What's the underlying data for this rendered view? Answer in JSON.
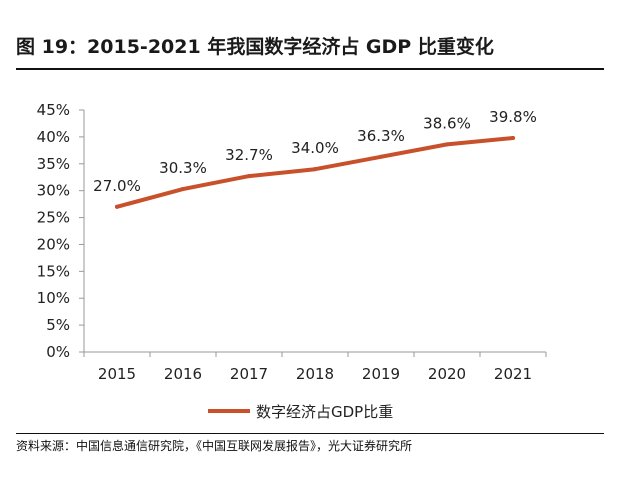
{
  "figure": {
    "title": "图 19：2015-2021 年我国数字经济占 GDP 比重变化",
    "source": "资料来源：中国信息通信研究院，《中国互联网发展报告》，光大证券研究所"
  },
  "chart_data": {
    "type": "line",
    "x": [
      "2015",
      "2016",
      "2017",
      "2018",
      "2019",
      "2020",
      "2021"
    ],
    "series": [
      {
        "name": "数字经济占GDP比重",
        "values": [
          27.0,
          30.3,
          32.7,
          34.0,
          36.3,
          38.6,
          39.8
        ],
        "labels": [
          "27.0%",
          "30.3%",
          "32.7%",
          "34.0%",
          "36.3%",
          "38.6%",
          "39.8%"
        ],
        "color": "#c8502a"
      }
    ],
    "ylim": [
      0,
      45
    ],
    "yticks": [
      "0%",
      "5%",
      "10%",
      "15%",
      "20%",
      "25%",
      "30%",
      "35%",
      "40%",
      "45%"
    ],
    "grid": false,
    "legend": "bottom"
  }
}
